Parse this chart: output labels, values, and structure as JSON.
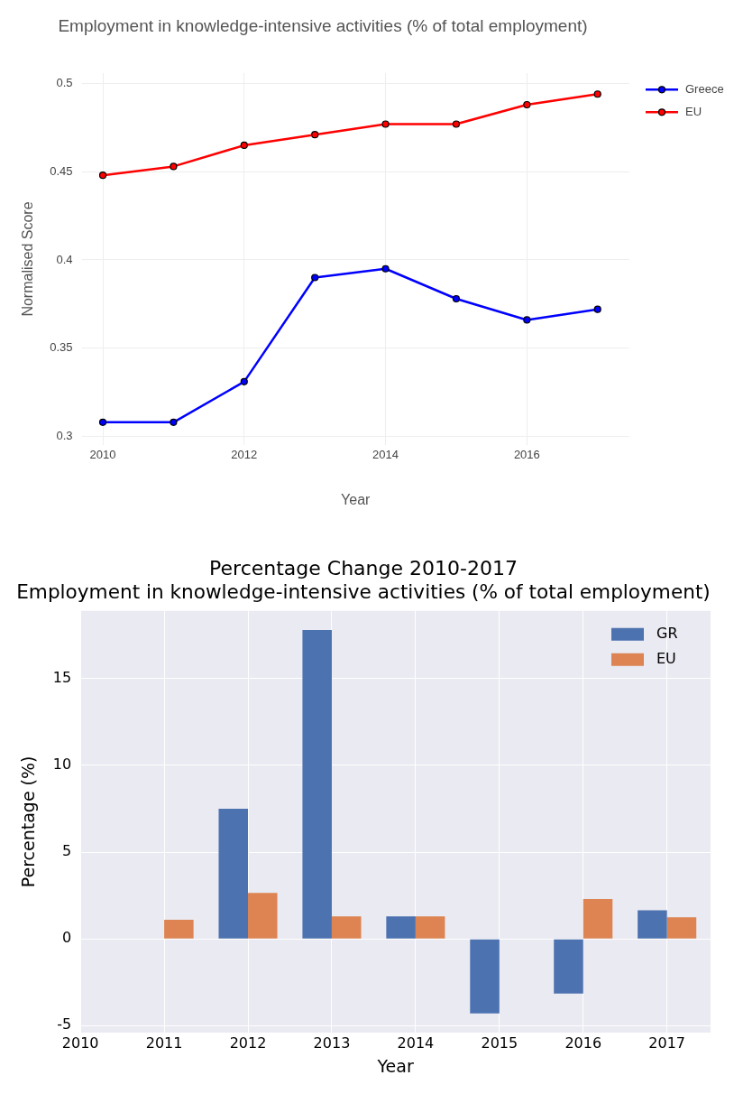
{
  "chart_data": [
    {
      "type": "line",
      "title": "Employment in knowledge-intensive activities (% of total employment)",
      "xlabel": "Year",
      "ylabel": "Normalised Score",
      "x": [
        2010,
        2011,
        2012,
        2013,
        2014,
        2015,
        2016,
        2017
      ],
      "series": [
        {
          "name": "Greece",
          "color": "#0000ff",
          "values": [
            0.308,
            0.308,
            0.331,
            0.39,
            0.395,
            0.378,
            0.366,
            0.372
          ]
        },
        {
          "name": "EU",
          "color": "#ff0000",
          "values": [
            0.448,
            0.453,
            0.465,
            0.471,
            0.477,
            0.477,
            0.488,
            0.494
          ]
        }
      ],
      "xlim": [
        2009.7,
        2017.45
      ],
      "xticks": [
        2010,
        2012,
        2014,
        2016
      ],
      "ylim": [
        0.295,
        0.506
      ],
      "yticks": [
        0.3,
        0.35,
        0.4,
        0.45,
        0.5
      ],
      "grid": true,
      "legend": "right",
      "marker": "circle",
      "line_style": "solid"
    },
    {
      "type": "bar",
      "title": "Percentage Change 2010-2017",
      "subtitle": "Employment in knowledge-intensive activities (% of total employment)",
      "xlabel": "Year",
      "ylabel": "Percentage (%)",
      "x": [
        2011,
        2012,
        2013,
        2014,
        2015,
        2016,
        2017
      ],
      "series": [
        {
          "name": "GR",
          "color": "#4c72b0",
          "values": [
            0,
            7.5,
            17.8,
            1.3,
            -4.3,
            -3.15,
            1.65
          ]
        },
        {
          "name": "EU",
          "color": "#dd8452",
          "values": [
            1.1,
            2.65,
            1.3,
            1.3,
            0,
            2.3,
            1.25
          ]
        }
      ],
      "xlim": [
        2010,
        2017.52
      ],
      "xticks": [
        2010,
        2011,
        2012,
        2013,
        2014,
        2015,
        2016,
        2017
      ],
      "ylim": [
        -5.4,
        18.9
      ],
      "yticks": [
        -5,
        0,
        5,
        10,
        15
      ],
      "grid": true,
      "legend": "top right"
    }
  ]
}
